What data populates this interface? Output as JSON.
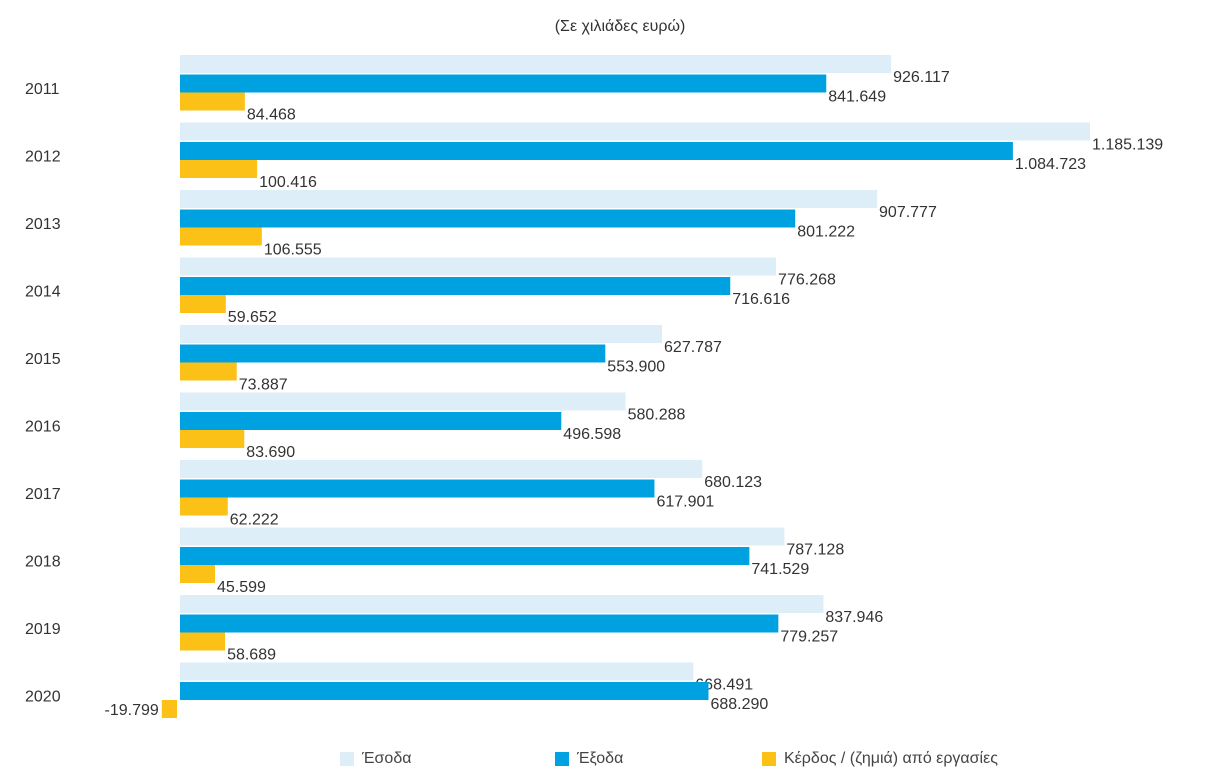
{
  "chart_data": {
    "type": "bar",
    "orientation": "horizontal",
    "subtitle": "(Σε χιλιάδες ευρώ)",
    "categories": [
      "2011",
      "2012",
      "2013",
      "2014",
      "2015",
      "2016",
      "2017",
      "2018",
      "2019",
      "2020"
    ],
    "series": [
      {
        "name": "Έσοδα",
        "color": "#ddeef9",
        "values": [
          926117,
          1185139,
          907777,
          776268,
          627787,
          580288,
          680123,
          787128,
          837946,
          668491
        ],
        "labels": [
          "926.117",
          "1.185.139",
          "907.777",
          "776.268",
          "627.787",
          "580.288",
          "680.123",
          "787.128",
          "837.946",
          "668.491"
        ]
      },
      {
        "name": "Έξοδα",
        "color": "#00a1e0",
        "values": [
          841649,
          1084723,
          801222,
          716616,
          553900,
          496598,
          617901,
          741529,
          779257,
          688290
        ],
        "labels": [
          "841.649",
          "1.084.723",
          "801.222",
          "716.616",
          "553.900",
          "496.598",
          "617.901",
          "741.529",
          "779.257",
          "688.290"
        ]
      },
      {
        "name": "Κέρδος / (ζημιά) από εργασίες",
        "color": "#fcc116",
        "values": [
          84468,
          100416,
          106555,
          59652,
          73887,
          83690,
          62222,
          45599,
          58689,
          -19799
        ],
        "labels": [
          "84.468",
          "100.416",
          "106.555",
          "59.652",
          "73.887",
          "83.690",
          "62.222",
          "45.599",
          "58.689",
          "-19.799"
        ]
      }
    ],
    "grid": false,
    "legend_position": "bottom"
  }
}
